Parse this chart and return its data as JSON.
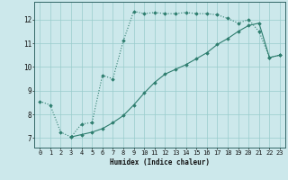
{
  "xlabel": "Humidex (Indice chaleur)",
  "background_color": "#cce8eb",
  "grid_color": "#99cccc",
  "line_color": "#2d7d6e",
  "xlim": [
    -0.5,
    23.5
  ],
  "ylim": [
    6.6,
    12.75
  ],
  "xtick_labels": [
    "0",
    "1",
    "2",
    "3",
    "4",
    "5",
    "6",
    "7",
    "8",
    "9",
    "10",
    "11",
    "12",
    "13",
    "14",
    "15",
    "16",
    "17",
    "18",
    "19",
    "20",
    "21",
    "22",
    "23"
  ],
  "ytick_values": [
    7,
    8,
    9,
    10,
    11,
    12
  ],
  "curve1_x": [
    0,
    1,
    2,
    3,
    4,
    5,
    6,
    7,
    8,
    9,
    10,
    11,
    12,
    13,
    14,
    15,
    16,
    17,
    18,
    19,
    20,
    21,
    22,
    23
  ],
  "curve1_y": [
    8.55,
    8.4,
    7.25,
    7.05,
    7.6,
    7.65,
    9.65,
    9.5,
    11.1,
    12.35,
    12.25,
    12.3,
    12.25,
    12.25,
    12.3,
    12.25,
    12.25,
    12.2,
    12.05,
    11.85,
    12.0,
    11.5,
    10.4,
    10.5
  ],
  "curve2_x": [
    3,
    4,
    5,
    6,
    7,
    8,
    9,
    10,
    11,
    12,
    13,
    14,
    15,
    16,
    17,
    18,
    19,
    20,
    21,
    22,
    23
  ],
  "curve2_y": [
    7.05,
    7.15,
    7.25,
    7.4,
    7.65,
    7.95,
    8.4,
    8.9,
    9.35,
    9.7,
    9.9,
    10.1,
    10.35,
    10.6,
    10.95,
    11.2,
    11.5,
    11.75,
    11.85,
    10.4,
    10.5
  ]
}
